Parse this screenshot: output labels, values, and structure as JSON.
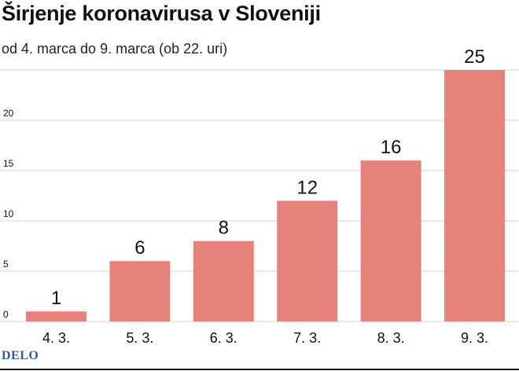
{
  "header": {
    "title": "Širjenje koronavirusa v Sloveniji",
    "subtitle": "od 4. marca do 9. marca (ob 22. uri)"
  },
  "footer": {
    "brand": "DELO"
  },
  "chart_data": {
    "type": "bar",
    "title": "Širjenje koronavirusa v Sloveniji",
    "subtitle": "od 4. marca do 9. marca (ob 22. uri)",
    "categories": [
      "4. 3.",
      "5. 3.",
      "6. 3.",
      "7. 3.",
      "8. 3.",
      "9. 3."
    ],
    "values": [
      1,
      6,
      8,
      12,
      16,
      25
    ],
    "y_ticks": [
      0,
      5,
      10,
      15,
      20
    ],
    "ylim": [
      0,
      25
    ],
    "grid": true,
    "xlabel": "",
    "ylabel": "",
    "colors": {
      "bar": "#e4827b",
      "grid": "#d0d0d0",
      "text": "#111111"
    }
  }
}
